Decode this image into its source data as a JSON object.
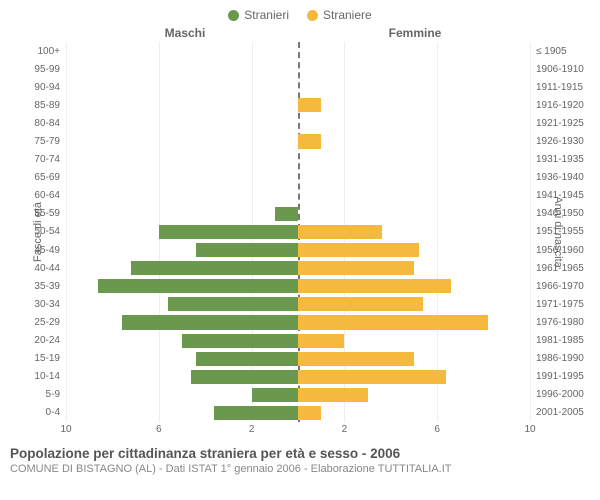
{
  "legend": {
    "male": {
      "label": "Stranieri",
      "color": "#6a994e"
    },
    "female": {
      "label": "Straniere",
      "color": "#f5b93d"
    }
  },
  "columns": {
    "male": "Maschi",
    "female": "Femmine"
  },
  "yaxis_left": {
    "title": "Fasce di età",
    "labels": [
      "100+",
      "95-99",
      "90-94",
      "85-89",
      "80-84",
      "75-79",
      "70-74",
      "65-69",
      "60-64",
      "55-59",
      "50-54",
      "45-49",
      "40-44",
      "35-39",
      "30-34",
      "25-29",
      "20-24",
      "15-19",
      "10-14",
      "5-9",
      "0-4"
    ]
  },
  "yaxis_right": {
    "title": "Anni di nascita",
    "labels": [
      "≤ 1905",
      "1906-1910",
      "1911-1915",
      "1916-1920",
      "1921-1925",
      "1926-1930",
      "1931-1935",
      "1936-1940",
      "1941-1945",
      "1946-1950",
      "1951-1955",
      "1956-1960",
      "1961-1965",
      "1966-1970",
      "1971-1975",
      "1976-1980",
      "1981-1985",
      "1986-1990",
      "1991-1995",
      "1996-2000",
      "2001-2005"
    ]
  },
  "pyramid": {
    "type": "population-pyramid",
    "x_max": 10,
    "x_ticks": [
      10,
      6,
      2,
      2,
      6,
      10
    ],
    "background_color": "#ffffff",
    "grid_color": "#eeeeee",
    "center_line_color": "#777777",
    "bar_gap": 0.22,
    "male": [
      0,
      0,
      0,
      0,
      0,
      0,
      0,
      0,
      0,
      1.0,
      6.0,
      4.4,
      7.2,
      8.6,
      5.6,
      7.6,
      5.0,
      4.4,
      4.6,
      2.0,
      3.6
    ],
    "female": [
      0,
      0,
      0,
      1.0,
      0,
      1.0,
      0,
      0,
      0,
      0,
      3.6,
      5.2,
      5.0,
      6.6,
      5.4,
      8.2,
      2.0,
      5.0,
      6.4,
      3.0,
      1.0
    ]
  },
  "titles": {
    "main": "Popolazione per cittadinanza straniera per età e sesso - 2006",
    "sub": "COMUNE DI BISTAGNO (AL) - Dati ISTAT 1° gennaio 2006 - Elaborazione TUTTITALIA.IT"
  }
}
